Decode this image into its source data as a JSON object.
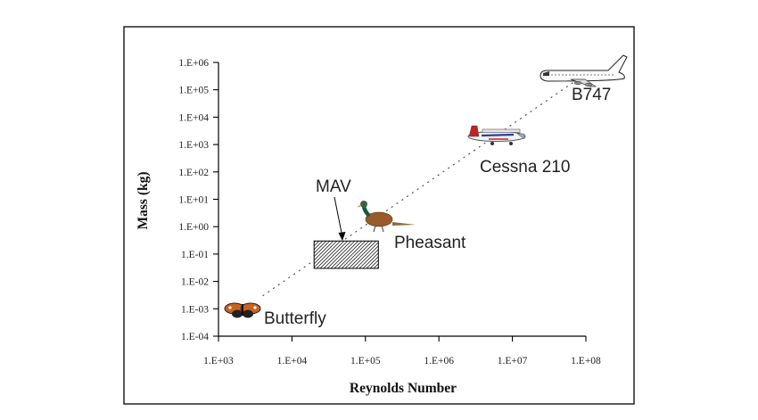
{
  "chart_data": {
    "type": "scatter",
    "title": "",
    "xlabel": "Reynolds Number",
    "ylabel": "Mass (kg)",
    "x_scale": "log",
    "y_scale": "log",
    "xlim": [
      1000,
      100000000
    ],
    "ylim": [
      0.0001,
      1000000
    ],
    "grid": false,
    "x_ticks": [
      "1.E+03",
      "1.E+04",
      "1.E+05",
      "1.E+06",
      "1.E+07",
      "1.E+08"
    ],
    "y_ticks": [
      "1.E-04",
      "1.E-03",
      "1.E-02",
      "1.E-01",
      "1.E+00",
      "1.E+01",
      "1.E+02",
      "1.E+03",
      "1.E+04",
      "1.E+05",
      "1.E+06"
    ],
    "points": [
      {
        "label": "Butterfly",
        "x": 2500,
        "y": 0.0008,
        "icon": "butterfly-icon"
      },
      {
        "label": "Pheasant",
        "x": 150000,
        "y": 1.0,
        "icon": "pheasant-icon"
      },
      {
        "label": "Cessna 210",
        "x": 6000000,
        "y": 1000,
        "icon": "cessna-icon"
      },
      {
        "label": "B747",
        "x": 80000000,
        "y": 300000,
        "icon": "b747-icon"
      }
    ],
    "mav_region": {
      "label": "MAV",
      "x": [
        20000,
        150000
      ],
      "y": [
        0.03,
        0.3
      ]
    },
    "trend_line": {
      "x": [
        4000,
        70000000
      ],
      "y": [
        0.003,
        200000
      ],
      "style": "dotted"
    }
  }
}
